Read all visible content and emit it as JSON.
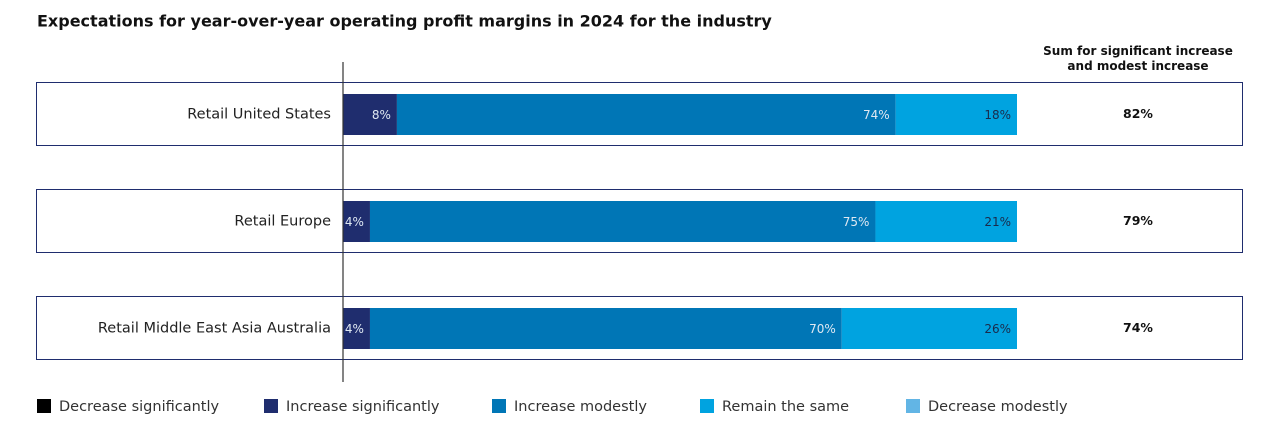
{
  "chart_data": {
    "type": "stacked-bar-horizontal",
    "title": "Expectations for year-over-year operating profit margins in 2024 for the industry",
    "categories": [
      "Retail United States",
      "Retail Europe",
      "Retail Middle East Asia Australia"
    ],
    "xlim": [
      0,
      100
    ],
    "series": [
      {
        "name": "Decrease significantly",
        "color": "#000000",
        "values": [
          0,
          0,
          0
        ]
      },
      {
        "name": "Increase significantly",
        "color": "#1f2d6e",
        "values": [
          8,
          4,
          4
        ],
        "value_labels": [
          "8%",
          "4%",
          "4%"
        ]
      },
      {
        "name": "Increase modestly",
        "color": "#0076b6",
        "values": [
          74,
          75,
          70
        ],
        "value_labels": [
          "74%",
          "75%",
          "70%"
        ]
      },
      {
        "name": "Remain the same",
        "color": "#00a3e0",
        "values": [
          18,
          21,
          26
        ],
        "value_labels": [
          "18%",
          "21%",
          "26%"
        ]
      },
      {
        "name": "Decrease modestly",
        "color": "#62b5e5",
        "values": [
          0,
          0,
          0
        ]
      }
    ],
    "sum_header": "Sum for significant increase and modest increase",
    "sums": {
      "values": [
        82,
        79,
        74
      ],
      "value_labels": [
        "82%",
        "79%",
        "74%"
      ]
    }
  }
}
